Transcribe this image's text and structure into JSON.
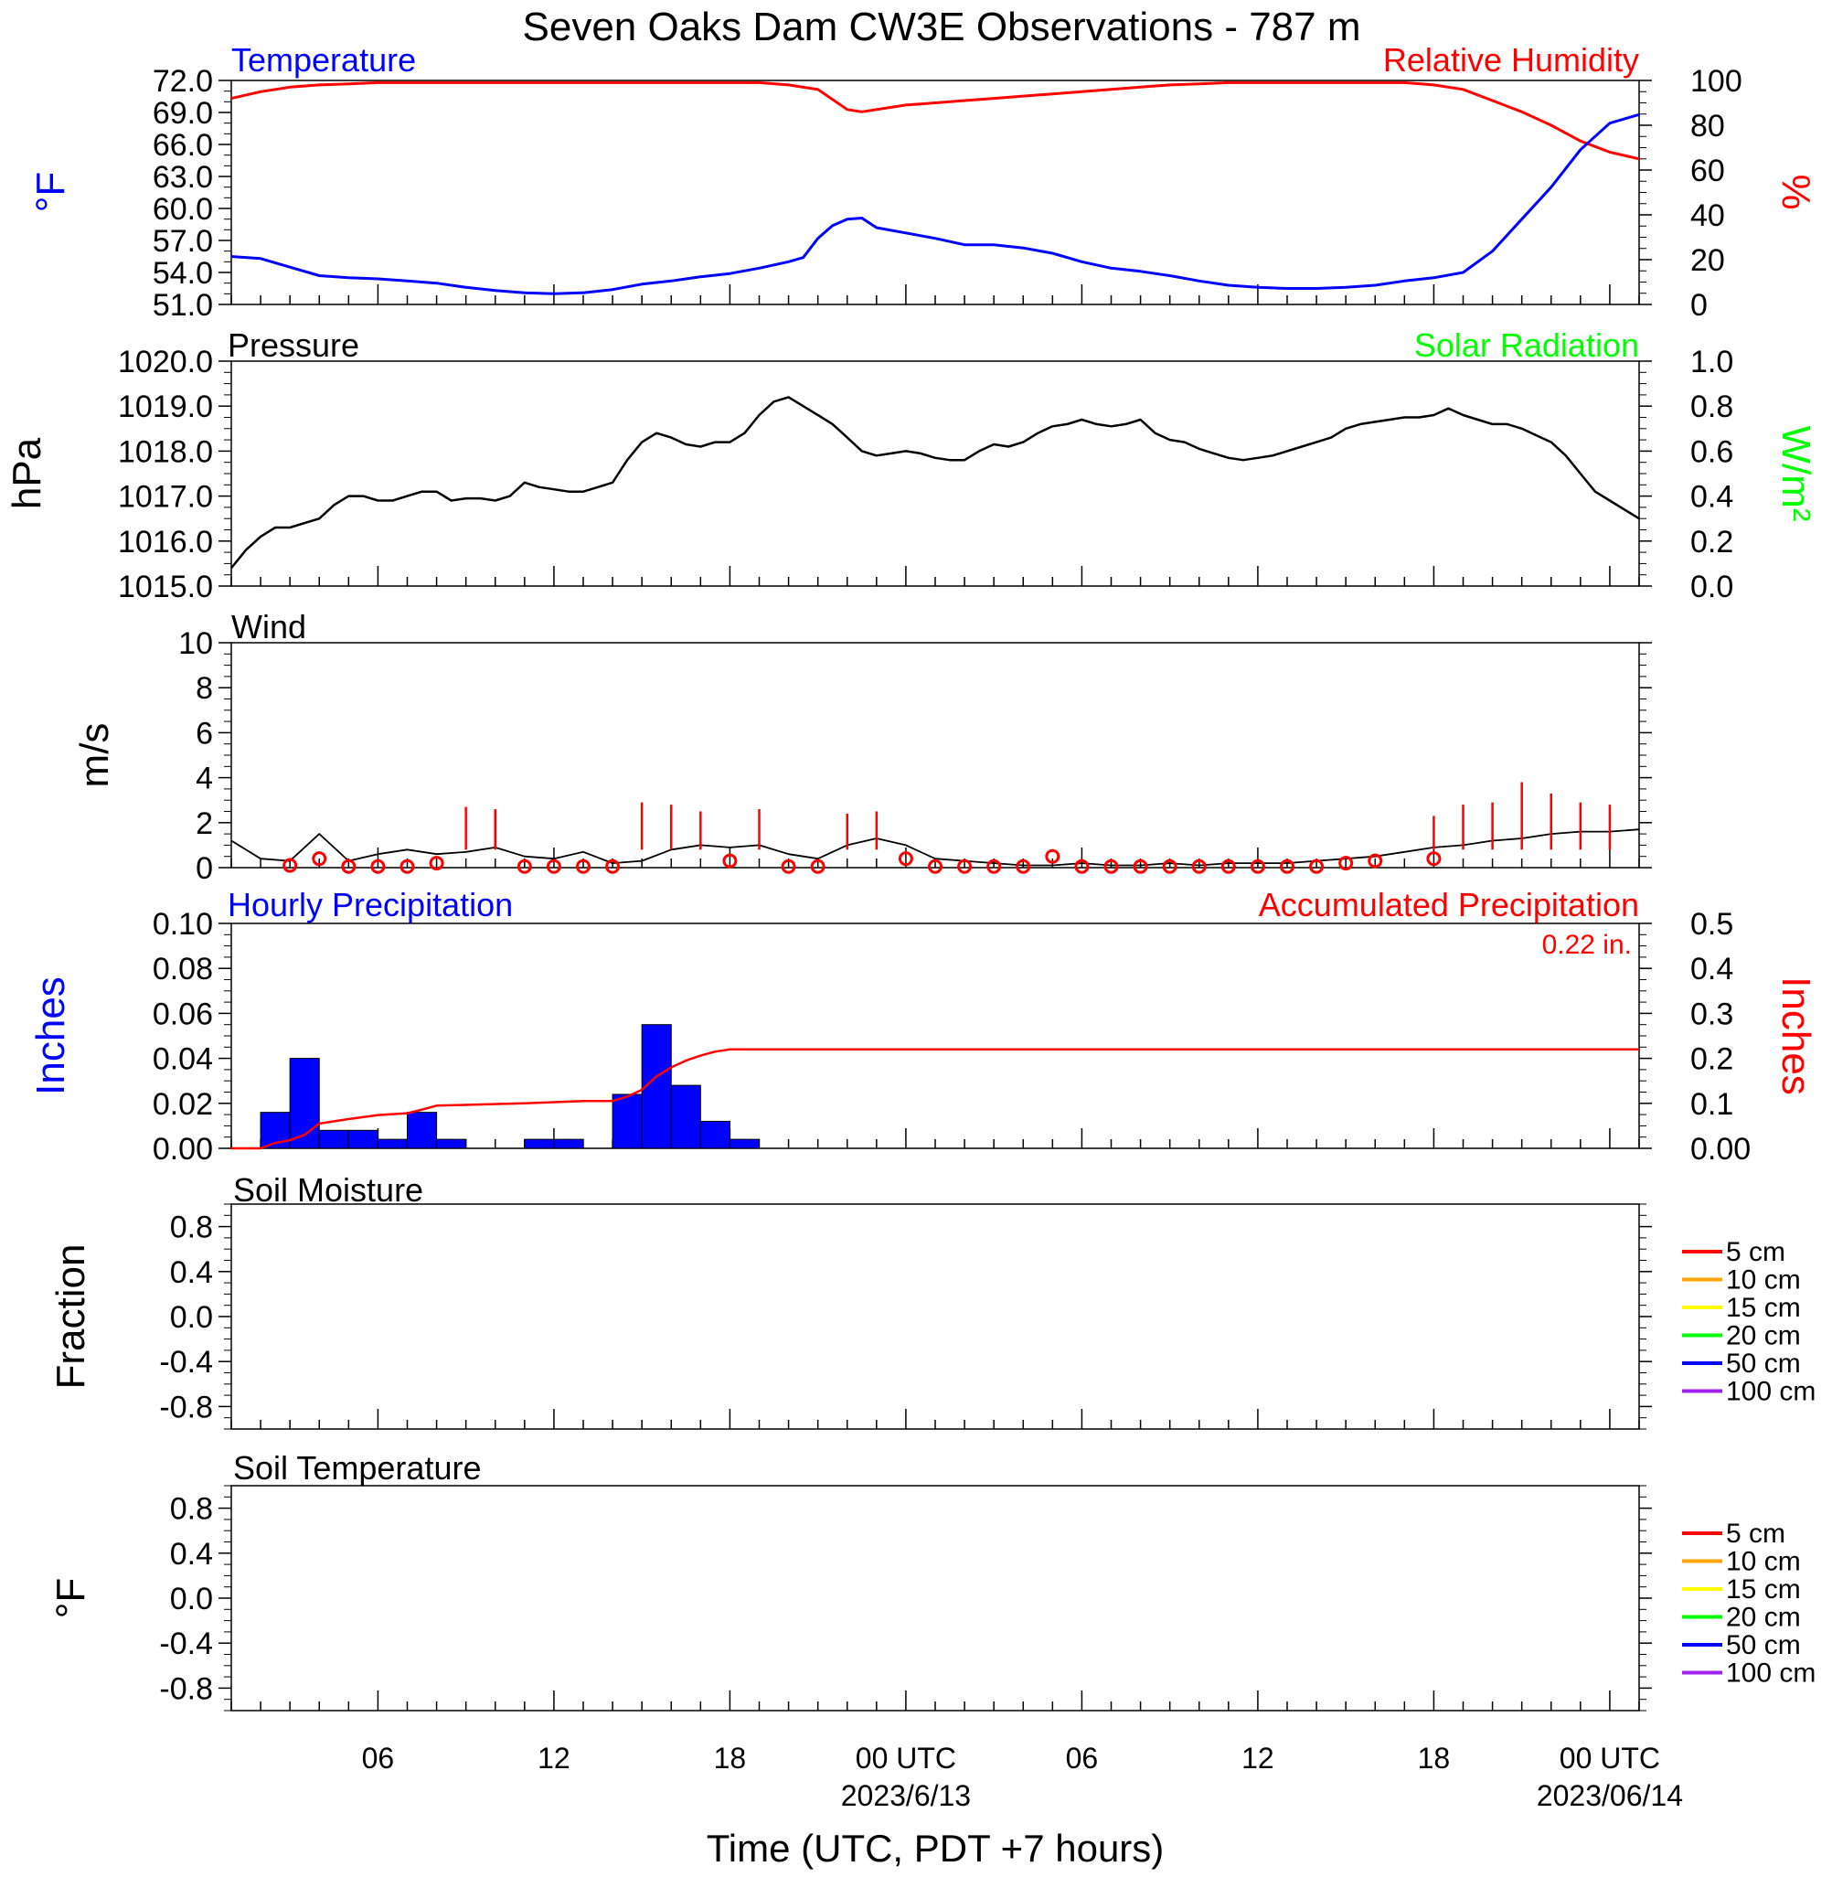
{
  "title": "Seven Oaks Dam CW3E Observations - 787 m",
  "x_axis": {
    "ticks": [
      {
        "h": 6,
        "label": "06"
      },
      {
        "h": 12,
        "label": "12"
      },
      {
        "h": 18,
        "label": "18"
      },
      {
        "h": 24,
        "label": "00 UTC",
        "date": "2023/6/13"
      },
      {
        "h": 30,
        "label": "06"
      },
      {
        "h": 36,
        "label": "12"
      },
      {
        "h": 42,
        "label": "18"
      },
      {
        "h": 48,
        "label": "00 UTC",
        "date": "2023/06/14"
      }
    ],
    "range_hours": [
      1,
      49
    ],
    "label": "Time (UTC, PDT +7 hours)"
  },
  "colors": {
    "temperature": "#0000ff",
    "humidity": "#ff0000",
    "pressure": "#000000",
    "solar": "#00ff00",
    "wind": "#000000",
    "gust": "#ff0000",
    "hourly_precip": "#0000ff",
    "accum_precip": "#ff0000"
  },
  "panels": {
    "temp_rh": {
      "left_title": "Temperature",
      "right_title": "Relative Humidity",
      "left_unit": "°F",
      "right_unit": "%",
      "left_ticks": [
        "72.0",
        "69.0",
        "66.0",
        "63.0",
        "60.0",
        "57.0",
        "54.0",
        "51.0"
      ],
      "right_ticks": [
        "100",
        "80",
        "60",
        "40",
        "20",
        "0"
      ]
    },
    "pressure": {
      "left_title": "Pressure",
      "right_title": "Solar Radiation",
      "left_unit": "hPa",
      "right_unit": "W/m²",
      "left_ticks": [
        "1020.0",
        "1019.0",
        "1018.0",
        "1017.0",
        "1016.0",
        "1015.0"
      ],
      "right_ticks": [
        "1.0",
        "0.8",
        "0.6",
        "0.4",
        "0.2",
        "0.0"
      ]
    },
    "wind": {
      "left_title": "Wind",
      "left_unit": "m/s",
      "left_ticks": [
        "10",
        "8",
        "6",
        "4",
        "2",
        "0"
      ]
    },
    "precip": {
      "left_title": "Hourly Precipitation",
      "right_title": "Accumulated Precipitation",
      "total_text": "0.22 in.",
      "left_unit": "Inches",
      "right_unit": "Inches",
      "left_ticks": [
        "0.10",
        "0.08",
        "0.06",
        "0.04",
        "0.02",
        "0.00"
      ],
      "right_ticks": [
        "0.5",
        "0.4",
        "0.3",
        "0.2",
        "0.1",
        "0.00"
      ]
    },
    "soil_moisture": {
      "left_title": "Soil Moisture",
      "left_unit": "Fraction",
      "left_ticks": [
        "0.8",
        "0.4",
        "0.0",
        "-0.4",
        "-0.8"
      ],
      "legend": [
        "5 cm",
        "10 cm",
        "15 cm",
        "20 cm",
        "50 cm",
        "100 cm"
      ]
    },
    "soil_temperature": {
      "left_title": "Soil Temperature",
      "left_unit": "°F",
      "left_ticks": [
        "0.8",
        "0.4",
        "0.0",
        "-0.4",
        "-0.8"
      ],
      "legend": [
        "5 cm",
        "10 cm",
        "15 cm",
        "20 cm",
        "50 cm",
        "100 cm"
      ]
    }
  },
  "legend_colors": [
    "#ff0000",
    "#ffa500",
    "#ffff00",
    "#00ff00",
    "#0000ff",
    "#a020f0"
  ],
  "chart_data": [
    {
      "type": "line",
      "name": "temperature_rh",
      "xlabel": "Time (UTC, PDT +7 hours)",
      "ylabel": "°F",
      "ylim": [
        51,
        72
      ],
      "y2label": "%",
      "y2lim": [
        0,
        100
      ],
      "series": [
        {
          "name": "Temperature",
          "axis": "left",
          "x": [
            1,
            2,
            3,
            4,
            5,
            6,
            7,
            8,
            9,
            10,
            11,
            12,
            13,
            14,
            15,
            16,
            17,
            18,
            19,
            20,
            20.5,
            21,
            21.5,
            22,
            22.5,
            23,
            24,
            25,
            26,
            27,
            28,
            29,
            30,
            31,
            32,
            33,
            34,
            35,
            36,
            37,
            38,
            39,
            40,
            41,
            42,
            43,
            44,
            45,
            46,
            47,
            48,
            49
          ],
          "y": [
            55.5,
            55.3,
            54.5,
            53.7,
            53.5,
            53.4,
            53.2,
            53.0,
            52.6,
            52.3,
            52.1,
            52.0,
            52.1,
            52.4,
            52.9,
            53.2,
            53.6,
            53.9,
            54.4,
            55.0,
            55.4,
            57.2,
            58.4,
            59.0,
            59.1,
            58.2,
            57.7,
            57.2,
            56.6,
            56.6,
            56.3,
            55.8,
            55.0,
            54.4,
            54.1,
            53.7,
            53.2,
            52.8,
            52.6,
            52.5,
            52.5,
            52.6,
            52.8,
            53.2,
            53.5,
            54.0,
            56.0,
            59.0,
            62.0,
            65.5,
            68.0,
            68.8
          ]
        },
        {
          "name": "Relative Humidity",
          "axis": "right",
          "x": [
            1,
            2,
            3,
            4,
            5,
            6,
            7,
            8,
            9,
            10,
            11,
            12,
            13,
            14,
            15,
            16,
            17,
            18,
            19,
            20,
            21,
            22,
            22.5,
            23,
            24,
            25,
            26,
            27,
            28,
            29,
            30,
            31,
            32,
            33,
            34,
            35,
            36,
            37,
            38,
            39,
            40,
            41,
            42,
            43,
            44,
            45,
            46,
            47,
            48,
            49
          ],
          "y": [
            92,
            95,
            97,
            98,
            98.5,
            99,
            99,
            99,
            99,
            99,
            99,
            99,
            99,
            99,
            99,
            99,
            99,
            99,
            99,
            98,
            96,
            87,
            86,
            87,
            89,
            90,
            91,
            92,
            93,
            94,
            95,
            96,
            97,
            98,
            98.5,
            99,
            99,
            99,
            99,
            99,
            99,
            99,
            98,
            96,
            91,
            86,
            80,
            73,
            68,
            65
          ]
        }
      ]
    },
    {
      "type": "line",
      "name": "pressure",
      "ylabel": "hPa",
      "ylim": [
        1015,
        1020
      ],
      "y2label": "W/m²",
      "y2lim": [
        0,
        1
      ],
      "series": [
        {
          "name": "Pressure",
          "x": [
            1,
            1.5,
            2,
            2.5,
            3,
            3.5,
            4,
            4.5,
            5,
            5.5,
            6,
            6.5,
            7,
            7.5,
            8,
            8.5,
            9,
            9.5,
            10,
            10.5,
            11,
            11.5,
            12,
            12.5,
            13,
            13.5,
            14,
            14.5,
            15,
            15.5,
            16,
            16.5,
            17,
            17.5,
            18,
            18.5,
            19,
            19.5,
            20,
            20.5,
            21,
            21.5,
            22,
            22.5,
            23,
            23.5,
            24,
            24.5,
            25,
            25.5,
            26,
            26.5,
            27,
            27.5,
            28,
            28.5,
            29,
            29.5,
            30,
            30.5,
            31,
            31.5,
            32,
            32.5,
            33,
            33.5,
            34,
            34.5,
            35,
            35.5,
            36,
            36.5,
            37,
            37.5,
            38,
            38.5,
            39,
            39.5,
            40,
            40.5,
            41,
            41.5,
            42,
            42.5,
            43,
            43.5,
            44,
            44.5,
            45,
            45.5,
            46,
            46.5,
            47,
            47.5,
            48,
            48.5,
            49
          ],
          "y": [
            1015.4,
            1015.8,
            1016.1,
            1016.3,
            1016.3,
            1016.4,
            1016.5,
            1016.8,
            1017.0,
            1017.0,
            1016.9,
            1016.9,
            1017.0,
            1017.1,
            1017.1,
            1016.9,
            1016.95,
            1016.95,
            1016.9,
            1017.0,
            1017.3,
            1017.2,
            1017.15,
            1017.1,
            1017.1,
            1017.2,
            1017.3,
            1017.8,
            1018.2,
            1018.4,
            1018.3,
            1018.15,
            1018.1,
            1018.2,
            1018.2,
            1018.4,
            1018.8,
            1019.1,
            1019.2,
            1019.0,
            1018.8,
            1018.6,
            1018.3,
            1018.0,
            1017.9,
            1017.95,
            1018.0,
            1017.95,
            1017.85,
            1017.8,
            1017.8,
            1018.0,
            1018.15,
            1018.1,
            1018.2,
            1018.4,
            1018.55,
            1018.6,
            1018.7,
            1018.6,
            1018.55,
            1018.6,
            1018.7,
            1018.4,
            1018.25,
            1018.2,
            1018.05,
            1017.95,
            1017.85,
            1017.8,
            1017.85,
            1017.9,
            1018.0,
            1018.1,
            1018.2,
            1018.3,
            1018.5,
            1018.6,
            1018.65,
            1018.7,
            1018.75,
            1018.75,
            1018.8,
            1018.95,
            1018.8,
            1018.7,
            1018.6,
            1018.6,
            1018.5,
            1018.35,
            1018.2,
            1017.9,
            1017.5,
            1017.1,
            1016.9,
            1016.7,
            1016.5
          ]
        }
      ]
    },
    {
      "type": "line",
      "name": "wind",
      "ylabel": "m/s",
      "ylim": [
        0,
        10
      ],
      "series": [
        {
          "name": "Wind speed",
          "x": [
            1,
            2,
            3,
            4,
            5,
            6,
            7,
            8,
            9,
            10,
            11,
            12,
            13,
            14,
            15,
            16,
            17,
            18,
            19,
            20,
            21,
            22,
            23,
            24,
            25,
            26,
            27,
            28,
            29,
            30,
            31,
            32,
            33,
            34,
            35,
            36,
            37,
            38,
            39,
            40,
            41,
            42,
            43,
            44,
            45,
            46,
            47,
            48,
            49
          ],
          "y": [
            1.2,
            0.4,
            0.3,
            1.5,
            0.3,
            0.6,
            0.8,
            0.6,
            0.7,
            0.9,
            0.5,
            0.4,
            0.7,
            0.2,
            0.3,
            0.8,
            1.0,
            0.9,
            1.0,
            0.6,
            0.4,
            1.0,
            1.3,
            1.0,
            0.4,
            0.3,
            0.2,
            0.1,
            0.1,
            0.2,
            0.1,
            0.1,
            0.2,
            0.1,
            0.2,
            0.2,
            0.2,
            0.3,
            0.4,
            0.5,
            0.7,
            0.9,
            1.0,
            1.2,
            1.3,
            1.5,
            1.6,
            1.6,
            1.7
          ]
        },
        {
          "name": "Gust",
          "x": [
            9,
            10,
            15,
            16,
            17,
            19,
            22,
            23,
            42,
            43,
            44,
            45,
            46,
            47,
            48
          ],
          "y": [
            2.7,
            2.6,
            2.9,
            2.8,
            2.5,
            2.6,
            2.4,
            2.5,
            2.3,
            2.8,
            2.9,
            3.8,
            3.3,
            2.9,
            2.8
          ]
        },
        {
          "name": "Hourly mean",
          "x": [
            3,
            4,
            5,
            6,
            7,
            8,
            11,
            12,
            13,
            14,
            18,
            20,
            21,
            24,
            25,
            26,
            27,
            28,
            29,
            30,
            31,
            32,
            33,
            34,
            35,
            36,
            37,
            38,
            39,
            40,
            42
          ],
          "y": [
            0.1,
            0.4,
            0.05,
            0.05,
            0.05,
            0.2,
            0.05,
            0.05,
            0.05,
            0.05,
            0.3,
            0.05,
            0.05,
            0.4,
            0.05,
            0.05,
            0.05,
            0.05,
            0.5,
            0.05,
            0.05,
            0.05,
            0.05,
            0.05,
            0.05,
            0.05,
            0.05,
            0.05,
            0.2,
            0.3,
            0.4
          ]
        }
      ]
    },
    {
      "type": "bar",
      "name": "precipitation",
      "ylabel": "Inches",
      "ylim": [
        0,
        0.1
      ],
      "y2label": "Inches",
      "y2lim": [
        0,
        0.5
      ],
      "series": [
        {
          "name": "Hourly Precipitation",
          "x": [
            2,
            3,
            4,
            5,
            6,
            7,
            8,
            11,
            12,
            14,
            15,
            16,
            17,
            18
          ],
          "values": [
            0.016,
            0.04,
            0.008,
            0.008,
            0.004,
            0.016,
            0.004,
            0.004,
            0.004,
            0.024,
            0.055,
            0.028,
            0.012,
            0.004
          ]
        },
        {
          "name": "Accumulated Precipitation",
          "type": "line",
          "x": [
            1,
            2,
            2.5,
            3,
            3.5,
            4,
            5,
            6,
            7,
            7.5,
            8,
            11,
            13,
            14,
            14.5,
            15,
            15.5,
            16,
            16.5,
            17,
            17.5,
            18,
            49
          ],
          "y": [
            0,
            0,
            0.012,
            0.018,
            0.03,
            0.055,
            0.065,
            0.074,
            0.078,
            0.086,
            0.095,
            0.1,
            0.105,
            0.105,
            0.115,
            0.13,
            0.16,
            0.18,
            0.195,
            0.206,
            0.215,
            0.22,
            0.22
          ]
        }
      ]
    },
    {
      "type": "line",
      "name": "soil_moisture",
      "ylabel": "Fraction",
      "ylim": [
        -1,
        1
      ],
      "series": []
    },
    {
      "type": "line",
      "name": "soil_temperature",
      "ylabel": "°F",
      "ylim": [
        -1,
        1
      ],
      "series": []
    }
  ]
}
